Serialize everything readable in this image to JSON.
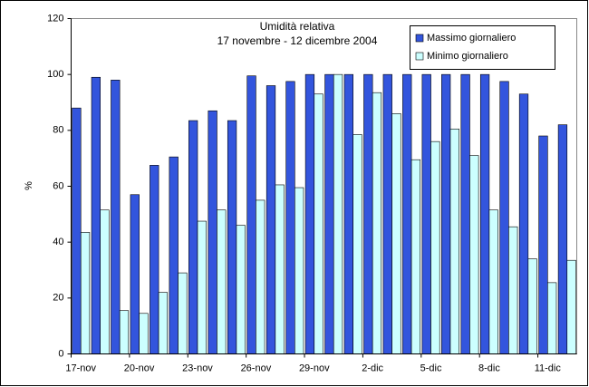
{
  "chart_data": {
    "type": "bar",
    "title": "Umidità relativa",
    "subtitle": "17 novembre - 12 dicembre 2004",
    "y_label": "%",
    "categories": [
      "17-nov",
      null,
      null,
      "20-nov",
      null,
      null,
      "23-nov",
      null,
      null,
      "26-nov",
      null,
      null,
      "29-nov",
      null,
      null,
      "2-dic",
      null,
      null,
      "5-dic",
      null,
      null,
      "8-dic",
      null,
      null,
      "11-dic",
      null
    ],
    "series": [
      {
        "name": "Massimo giornaliero",
        "color": "#3355dd",
        "values": [
          88,
          99,
          98,
          57,
          67.5,
          70.5,
          83.5,
          87,
          83.5,
          99.5,
          96,
          97.5,
          100,
          100,
          100,
          100,
          100,
          100,
          100,
          100,
          100,
          100,
          97.5,
          93,
          78,
          82
        ]
      },
      {
        "name": "Minimo giornaliero",
        "color": "#ccffff",
        "values": [
          43.5,
          51.5,
          15.5,
          14.5,
          22,
          29,
          47.5,
          51.5,
          46,
          55,
          60.5,
          59.5,
          93,
          100,
          78.5,
          93.5,
          86,
          69.5,
          76,
          80.5,
          71,
          51.5,
          45.5,
          34,
          25.5,
          33.5
        ]
      }
    ],
    "ylim": [
      0,
      120
    ],
    "yticks": [
      0,
      20,
      40,
      60,
      80,
      100,
      120
    ],
    "grid": false,
    "legend": "top-right"
  }
}
